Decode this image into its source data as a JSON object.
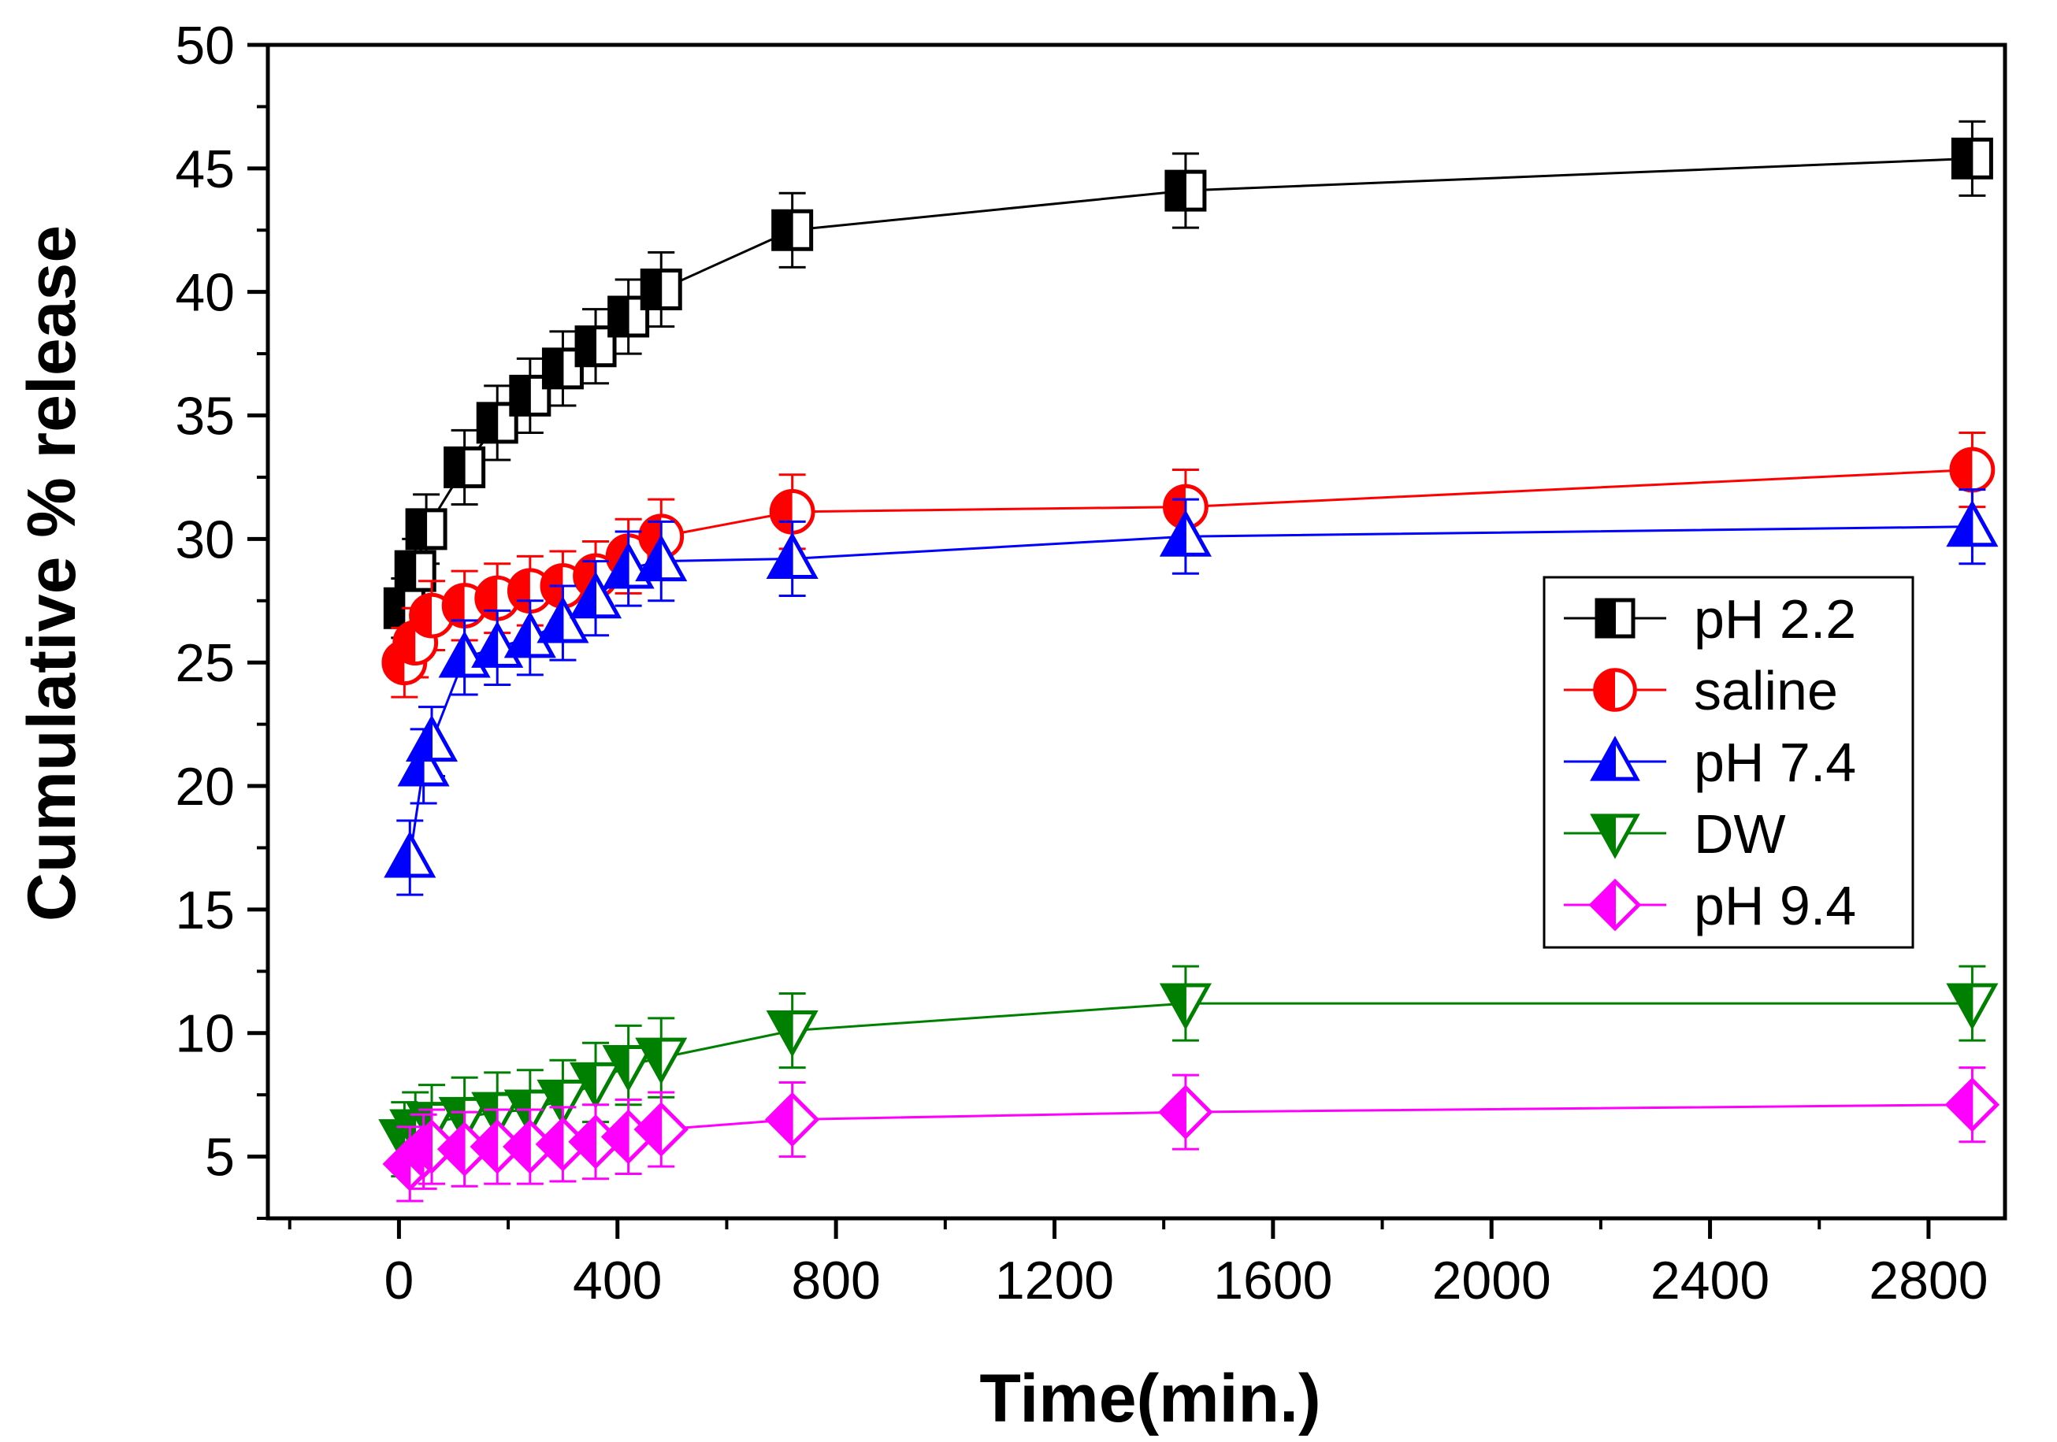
{
  "chart_data": {
    "type": "line",
    "xlabel": "Time(min.)",
    "ylabel": "Cumulative % release",
    "xlim": [
      -240,
      2940
    ],
    "ylim": [
      2.5,
      50
    ],
    "xticks": [
      0,
      400,
      800,
      1200,
      1600,
      2000,
      2400,
      2800
    ],
    "yticks": [
      5,
      10,
      15,
      20,
      25,
      30,
      35,
      40,
      45,
      50
    ],
    "legend_position": "right",
    "series": [
      {
        "name": "pH 2.2",
        "color": "#000000",
        "marker": "square",
        "x": [
          10,
          30,
          50,
          120,
          180,
          240,
          300,
          360,
          420,
          480,
          720,
          1440,
          2880
        ],
        "y": [
          27.2,
          28.7,
          30.4,
          32.9,
          34.7,
          35.8,
          36.9,
          37.8,
          39.0,
          40.1,
          42.5,
          44.1,
          45.4
        ],
        "err": [
          1.2,
          1.3,
          1.4,
          1.5,
          1.5,
          1.5,
          1.5,
          1.5,
          1.5,
          1.5,
          1.5,
          1.5,
          1.5
        ]
      },
      {
        "name": "saline",
        "color": "#ff0000",
        "marker": "circle",
        "x": [
          10,
          30,
          60,
          120,
          180,
          240,
          300,
          360,
          420,
          480,
          720,
          1440,
          2880
        ],
        "y": [
          25.0,
          25.8,
          26.9,
          27.3,
          27.6,
          27.9,
          28.1,
          28.5,
          29.3,
          30.1,
          31.1,
          31.3,
          32.8
        ],
        "err": [
          1.4,
          1.4,
          1.4,
          1.4,
          1.4,
          1.4,
          1.4,
          1.4,
          1.5,
          1.5,
          1.5,
          1.5,
          1.5
        ]
      },
      {
        "name": "pH 7.4",
        "color": "#0000ff",
        "marker": "triangle-up",
        "x": [
          20,
          45,
          60,
          120,
          180,
          240,
          300,
          360,
          420,
          480,
          720,
          1440,
          2880
        ],
        "y": [
          17.1,
          20.8,
          21.8,
          25.2,
          25.6,
          26.0,
          26.6,
          27.6,
          28.8,
          29.1,
          29.2,
          30.1,
          30.5
        ],
        "err": [
          1.5,
          1.5,
          1.4,
          1.5,
          1.5,
          1.5,
          1.5,
          1.5,
          1.5,
          1.6,
          1.5,
          1.5,
          1.5
        ]
      },
      {
        "name": "DW",
        "color": "#008000",
        "marker": "triangle-down",
        "x": [
          10,
          30,
          60,
          120,
          180,
          240,
          300,
          360,
          420,
          480,
          720,
          1440,
          2880
        ],
        "y": [
          5.7,
          6.1,
          6.4,
          6.6,
          6.8,
          6.9,
          7.3,
          8.0,
          8.7,
          9.0,
          10.1,
          11.2,
          11.2
        ],
        "err": [
          1.5,
          1.5,
          1.5,
          1.6,
          1.6,
          1.6,
          1.6,
          1.6,
          1.6,
          1.6,
          1.5,
          1.5,
          1.5
        ]
      },
      {
        "name": "pH 9.4",
        "color": "#ff00ff",
        "marker": "diamond",
        "x": [
          20,
          45,
          60,
          120,
          180,
          240,
          300,
          360,
          420,
          480,
          720,
          1440,
          2880
        ],
        "y": [
          4.7,
          5.2,
          5.4,
          5.3,
          5.4,
          5.4,
          5.5,
          5.6,
          5.8,
          6.1,
          6.5,
          6.8,
          7.1
        ],
        "err": [
          1.5,
          1.5,
          1.5,
          1.5,
          1.5,
          1.5,
          1.5,
          1.5,
          1.5,
          1.5,
          1.5,
          1.5,
          1.5
        ]
      }
    ]
  }
}
